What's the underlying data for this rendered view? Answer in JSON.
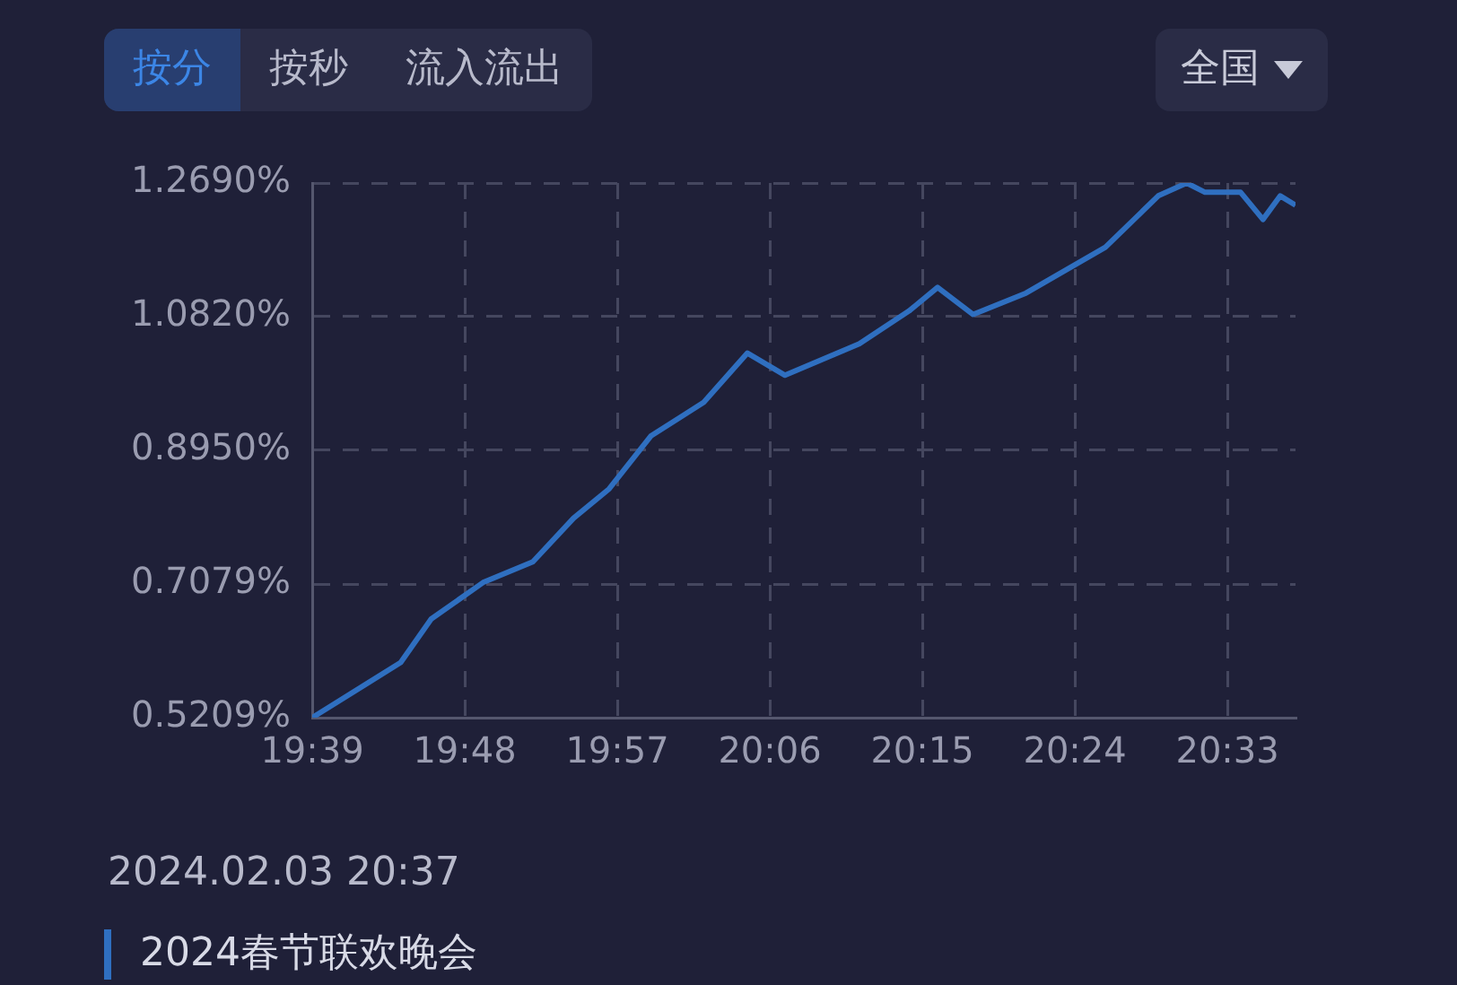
{
  "chart_data": {
    "type": "line",
    "title": "2024春节联欢晚会",
    "subtitle": "2024.02.03 20:37",
    "annotations": [
      "按分",
      "按秒",
      "流入流出",
      "全国"
    ],
    "x": [
      19.65,
      19.737,
      19.767,
      19.818,
      19.867,
      19.907,
      19.942,
      19.983,
      20.035,
      20.078,
      20.115,
      20.188,
      20.237,
      20.265,
      20.3,
      20.352,
      20.43,
      20.482,
      20.51,
      20.528,
      20.563,
      20.585,
      20.602,
      20.617
    ],
    "series": [
      {
        "color": "#2f6fc0",
        "values": [
          0.521,
          0.598,
          0.659,
          0.71,
          0.739,
          0.8,
          0.841,
          0.915,
          0.962,
          1.031,
          1.0,
          1.044,
          1.09,
          1.123,
          1.085,
          1.115,
          1.179,
          1.251,
          1.269,
          1.256,
          1.256,
          1.218,
          1.251,
          1.238
        ]
      }
    ],
    "xlim": [
      19.65,
      20.617
    ],
    "xticks": [
      {
        "value": 19.65,
        "label": "19:39"
      },
      {
        "value": 19.8,
        "label": "19:48"
      },
      {
        "value": 19.95,
        "label": "19:57"
      },
      {
        "value": 20.1,
        "label": "20:06"
      },
      {
        "value": 20.25,
        "label": "20:15"
      },
      {
        "value": 20.4,
        "label": "20:24"
      },
      {
        "value": 20.55,
        "label": "20:33"
      }
    ],
    "ylim": [
      0.5209,
      1.269
    ],
    "yticks": [
      {
        "value": 0.5209,
        "label": "0.5209%"
      },
      {
        "value": 0.7079,
        "label": "0.7079%"
      },
      {
        "value": 0.895,
        "label": "0.8950%"
      },
      {
        "value": 1.082,
        "label": "1.0820%"
      },
      {
        "value": 1.269,
        "label": "1.2690%"
      }
    ],
    "grid": true,
    "legend": false,
    "marker": "none",
    "line_style": "solid"
  }
}
